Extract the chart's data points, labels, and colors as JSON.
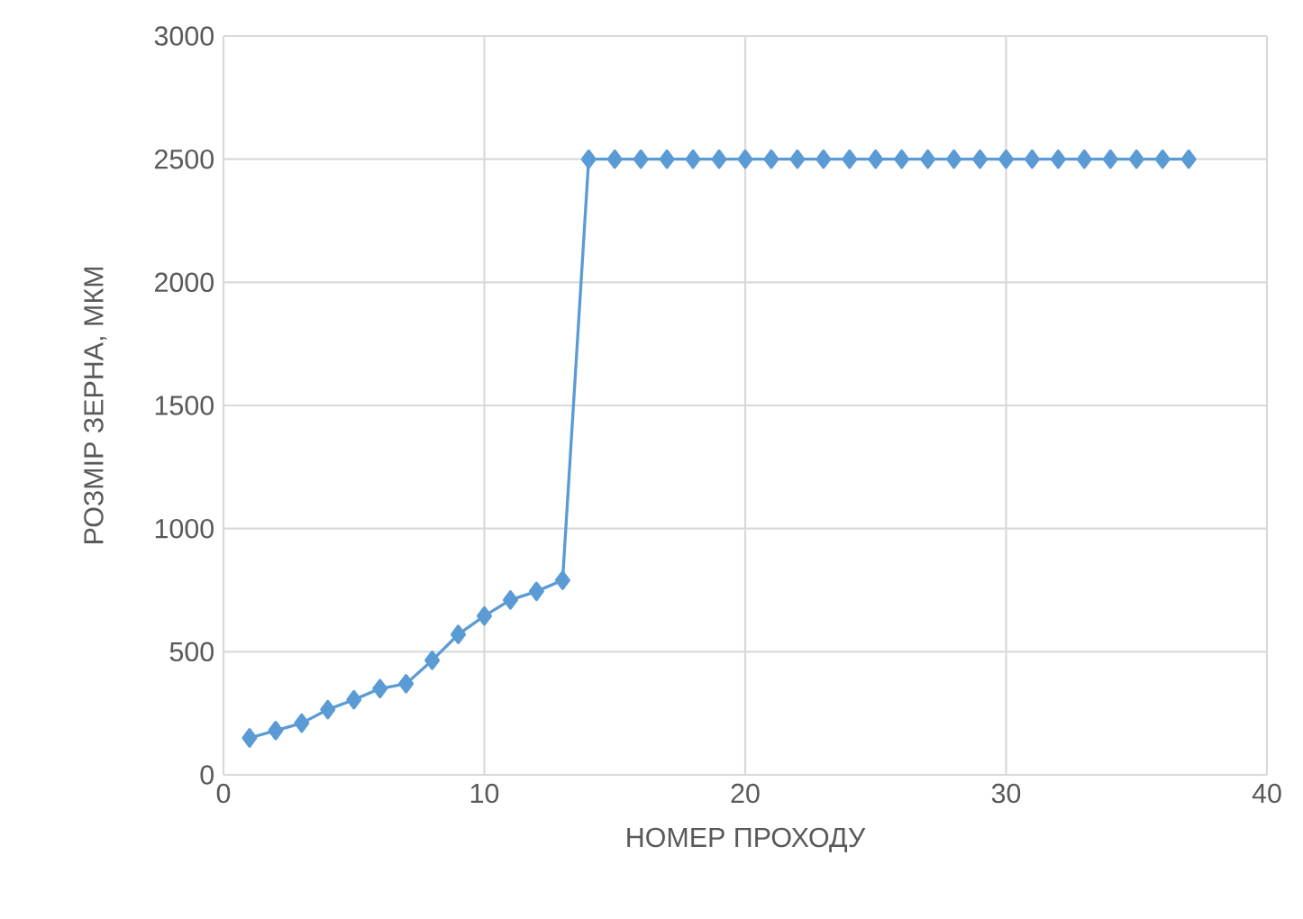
{
  "chart_data": {
    "type": "line",
    "xlabel": "НОМЕР ПРОХОДУ",
    "ylabel": "РОЗМІР ЗЕРНА, МКМ",
    "x": [
      1,
      2,
      3,
      4,
      5,
      6,
      7,
      8,
      9,
      10,
      11,
      12,
      13,
      14,
      15,
      16,
      17,
      18,
      19,
      20,
      21,
      22,
      23,
      24,
      25,
      26,
      27,
      28,
      29,
      30,
      31,
      32,
      33,
      34,
      35,
      36,
      37
    ],
    "series": [
      {
        "color": "#5b9bd5",
        "values": [
          150,
          180,
          210,
          265,
          305,
          350,
          370,
          465,
          570,
          645,
          710,
          745,
          790,
          2500,
          2500,
          2500,
          2500,
          2500,
          2500,
          2500,
          2500,
          2500,
          2500,
          2500,
          2500,
          2500,
          2500,
          2500,
          2500,
          2500,
          2500,
          2500,
          2500,
          2500,
          2500,
          2500,
          2500
        ]
      }
    ],
    "xlim": [
      0,
      40
    ],
    "xticks": [
      0,
      10,
      20,
      30,
      40
    ],
    "ylim": [
      0,
      3000
    ],
    "yticks": [
      0,
      500,
      1000,
      1500,
      2000,
      2500,
      3000
    ],
    "grid": true,
    "marker": "diamond",
    "line_style": "solid"
  }
}
